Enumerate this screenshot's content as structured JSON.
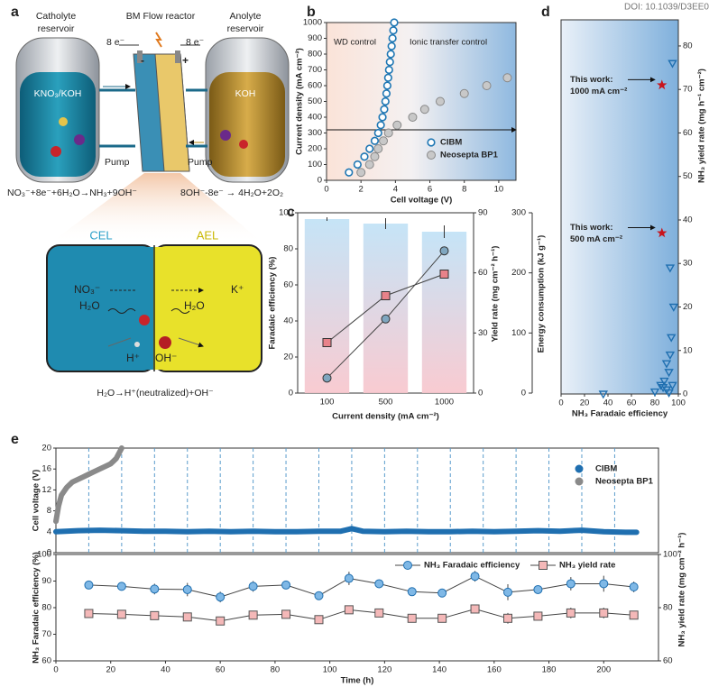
{
  "doi": "DOI: 10.1039/D3EE0",
  "panel_labels": [
    "a",
    "b",
    "c",
    "d",
    "e"
  ],
  "diagram": {
    "catholyte": [
      "Catholyte",
      "reservoir"
    ],
    "reactor": "BM Flow reactor",
    "anolyte": [
      "Anolyte",
      "reservoir"
    ],
    "electrons": [
      "8 e⁻",
      "8 e⁻"
    ],
    "poles": [
      "-",
      "+"
    ],
    "catholyte_solution": "KNO₃/KOH",
    "anolyte_solution": "KOH",
    "pumps": [
      "Pump",
      "Pump"
    ],
    "cathode_equation": "NO₃⁻+8e⁻+6H₂O→NH₃+9OH⁻",
    "anode_equation": "8OH⁻-8e⁻ → 4H₂O+2O₂",
    "layers": [
      "CEL",
      "AEL"
    ],
    "ions": [
      "NO₃⁻",
      "K⁺"
    ],
    "water": [
      "H₂O",
      "H₂O"
    ],
    "products": [
      "H⁺",
      "OH⁻"
    ],
    "membrane_equation": "H₂O→H⁺(neutralized)+OH⁻"
  },
  "chart_data": [
    {
      "type": "scatter",
      "x_label": "Cell voltage (V)",
      "y_label": "Current density (mA cm⁻²)",
      "xlim": [
        0,
        11
      ],
      "xticks": [
        0,
        2,
        4,
        6,
        8,
        10
      ],
      "ylim": [
        0,
        1000
      ],
      "yticks": [
        0,
        100,
        200,
        300,
        400,
        500,
        600,
        700,
        800,
        900,
        1000
      ],
      "annotations": [
        "WD control",
        "Ionic transfer control"
      ],
      "legend": "lower right",
      "series": [
        {
          "name": "CIBM",
          "color": "#1f77b4",
          "marker": "open-circle",
          "x": [
            1.3,
            1.8,
            2.2,
            2.5,
            2.8,
            3.0,
            3.15,
            3.25,
            3.35,
            3.42,
            3.48,
            3.53,
            3.58,
            3.63,
            3.68,
            3.73,
            3.78,
            3.83,
            3.88,
            3.93
          ],
          "values": [
            50,
            100,
            150,
            200,
            250,
            300,
            350,
            400,
            450,
            500,
            550,
            600,
            650,
            700,
            750,
            800,
            850,
            900,
            950,
            1000
          ]
        },
        {
          "name": "Neosepta BP1",
          "color": "#c8c8c8",
          "marker": "circle",
          "x": [
            2.0,
            2.5,
            2.8,
            3.0,
            3.3,
            3.6,
            4.1,
            5.0,
            5.7,
            6.6,
            8.0,
            9.3,
            10.5
          ],
          "values": [
            50,
            100,
            150,
            200,
            250,
            300,
            350,
            400,
            450,
            500,
            550,
            600,
            650
          ]
        }
      ]
    },
    {
      "type": "bar-line",
      "x_label": "Current density (mA cm⁻²)",
      "categories": [
        "100",
        "500",
        "1000"
      ],
      "y_label": "Faradaic efficiency (%)",
      "ylim": [
        0,
        100
      ],
      "yticks": [
        0,
        20,
        40,
        60,
        80,
        100
      ],
      "y2_label": "Yield rate (mg cm⁻² h⁻¹)",
      "y2lim": [
        0,
        90
      ],
      "y2ticks": [
        0,
        30,
        60,
        90
      ],
      "y3_label": "Energy consumption (kJ g⁻¹)",
      "y3lim": [
        0,
        300
      ],
      "y3ticks": [
        0,
        100,
        200,
        300
      ],
      "series": [
        {
          "axis": "y",
          "color": "#bfe1f6",
          "values": [
            96.5,
            94,
            89.5
          ],
          "errors": [
            1,
            3,
            3.5
          ]
        },
        {
          "axis": "y2",
          "color": "#7fa6bf",
          "marker": "circle",
          "values": [
            7.5,
            37,
            71
          ],
          "errors": [
            1,
            1.5,
            2
          ]
        },
        {
          "axis": "y3",
          "color": "#e8828a",
          "marker": "square",
          "values": [
            84,
            162,
            198
          ],
          "errors": [
            3,
            4,
            4
          ]
        }
      ]
    },
    {
      "type": "scatter",
      "x_label": "NH₃ Faradaic efficiency",
      "y_label": "NH₃ yield rate (mg h⁻¹ cm⁻²)",
      "y_axis_side": "right",
      "xlim": [
        0,
        100
      ],
      "xticks": [
        0,
        20,
        40,
        60,
        80,
        100
      ],
      "ylim": [
        0,
        86
      ],
      "yticks": [
        0,
        10,
        20,
        30,
        40,
        50,
        60,
        70,
        80
      ],
      "annotations": [
        [
          "This work:",
          "1000 mA cm⁻²"
        ],
        [
          "This work:",
          "500 mA cm⁻²"
        ]
      ],
      "series": [
        {
          "color": "#1f6fb0",
          "marker": "triangle",
          "x": [
            36,
            95,
            93,
            96,
            93,
            90,
            92,
            85,
            88,
            90,
            95,
            80,
            92,
            94,
            87
          ],
          "values": [
            0,
            76,
            29,
            20,
            9,
            7,
            5,
            2,
            3,
            1,
            2,
            0.5,
            0.3,
            13,
            1.5
          ]
        },
        {
          "color": "#c8141c",
          "marker": "star",
          "x": [
            86,
            86
          ],
          "values": [
            71,
            37
          ]
        }
      ]
    },
    {
      "type": "line",
      "y_label": "Cell voltage (V)",
      "xlim": [
        0,
        220
      ],
      "ylim": [
        0,
        20
      ],
      "yticks": [
        0,
        4,
        8,
        12,
        16,
        20
      ],
      "legend": "upper right",
      "vlines": [
        12,
        24,
        36,
        48,
        60,
        72,
        84,
        96,
        108,
        120,
        132,
        144,
        156,
        168,
        180,
        192,
        204
      ],
      "series": [
        {
          "name": "CIBM",
          "color": "#1f6fb0",
          "x": [
            0,
            8,
            16,
            24,
            32,
            40,
            48,
            56,
            64,
            72,
            80,
            88,
            96,
            104,
            108,
            112,
            120,
            128,
            136,
            144,
            152,
            160,
            168,
            176,
            184,
            192,
            200,
            208,
            212
          ],
          "values": [
            4.0,
            4.2,
            4.3,
            4.2,
            4.1,
            4.1,
            4.0,
            4.1,
            4.0,
            4.1,
            4.0,
            4.0,
            4.1,
            4.1,
            4.6,
            4.1,
            4.0,
            4.1,
            4.0,
            4.0,
            4.1,
            4.0,
            4.1,
            4.2,
            4.1,
            4.3,
            4.0,
            3.9,
            3.9
          ]
        },
        {
          "name": "Neosepta BP1",
          "color": "#8a8a8a",
          "x": [
            0,
            1,
            2,
            4,
            6,
            8,
            10,
            12,
            14,
            16,
            18,
            20,
            22,
            24
          ],
          "values": [
            6,
            9,
            11,
            12.5,
            13.5,
            14,
            14.5,
            15,
            15.5,
            16,
            16.5,
            17,
            18,
            20
          ]
        }
      ]
    },
    {
      "type": "line",
      "x_label": "Time (h)",
      "xlim": [
        0,
        220
      ],
      "xticks": [
        0,
        20,
        40,
        60,
        80,
        100,
        120,
        140,
        160,
        180,
        200
      ],
      "y_label": "NH₃ Faradaic efficiency (%)",
      "ylim": [
        60,
        100
      ],
      "yticks": [
        60,
        70,
        80,
        90,
        100
      ],
      "y2_label": "NH₃ yield rate (mg cm⁻² h⁻¹)",
      "y2lim": [
        60,
        100
      ],
      "y2ticks": [
        60,
        80,
        100
      ],
      "legend": "upper right",
      "series": [
        {
          "name": "NH₃ Faradaic efficiency",
          "color": "#1f6fb0",
          "fill": "#7fb8e6",
          "marker": "circle",
          "x": [
            12,
            24,
            36,
            48,
            60,
            72,
            84,
            96,
            107,
            118,
            130,
            141,
            153,
            165,
            176,
            188,
            200,
            211
          ],
          "values": [
            88.5,
            88,
            87,
            86.8,
            84,
            88,
            88.5,
            84.5,
            91,
            89,
            86,
            85.5,
            91.8,
            85.8,
            86.8,
            89,
            89,
            87.8
          ],
          "errors": [
            1,
            1.5,
            2,
            2.5,
            2,
            2,
            1,
            1,
            2.5,
            1.5,
            1.5,
            1.5,
            2,
            3,
            1,
            2.5,
            3,
            2
          ]
        },
        {
          "name": "NH₃ yield rate",
          "axis": "y2",
          "color": "#555555",
          "fill": "#f4b8b8",
          "marker": "square",
          "x": [
            12,
            24,
            36,
            48,
            60,
            72,
            84,
            96,
            107,
            118,
            130,
            141,
            153,
            165,
            176,
            188,
            200,
            211
          ],
          "values": [
            77.8,
            77.5,
            77,
            76.5,
            75,
            77.2,
            77.5,
            75.5,
            79.2,
            78,
            76,
            76,
            79.5,
            76,
            76.8,
            78,
            78,
            77.2
          ],
          "errors": [
            0.8,
            1,
            1.5,
            1.5,
            1.5,
            1.5,
            0.8,
            1,
            1.5,
            1,
            1,
            1,
            1.5,
            2,
            1,
            2,
            2,
            1.5
          ]
        }
      ]
    }
  ]
}
